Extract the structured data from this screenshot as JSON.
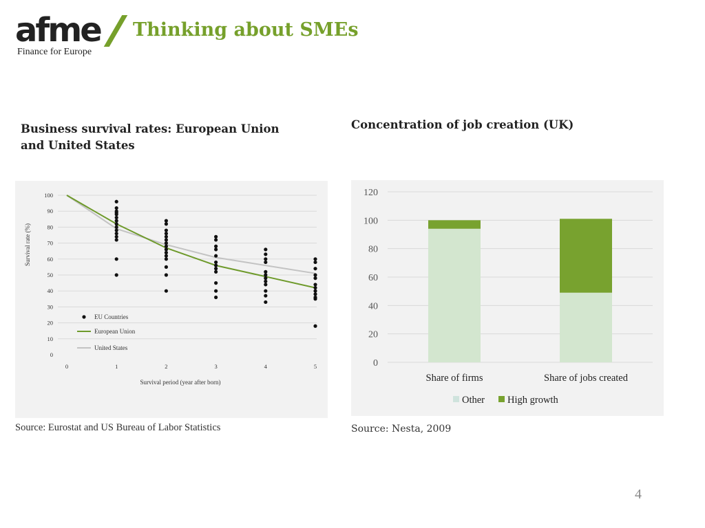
{
  "header": {
    "logo_word": "afme",
    "logo_tagline": "Finance for Europe",
    "title": "Thinking about SMEs"
  },
  "left": {
    "title": "Business survival rates: European Union and United States",
    "source": "Source: Eurostat and US Bureau of Labor Statistics"
  },
  "right": {
    "title": "Concentration of job creation (UK)",
    "source": "Source: Nesta, 2009"
  },
  "page_number": "4",
  "colors": {
    "accent": "#76a02b",
    "eu_line": "#6e9a2b",
    "us_line": "#c3c3c3",
    "other_bar": "#d3e6cf",
    "high_growth_bar": "#78a22f",
    "panel_bg": "#f2f2f2"
  },
  "chart_data": [
    {
      "type": "scatter",
      "xlabel": "Survival period (year after born)",
      "ylabel": "Survival rate (%)",
      "xlim": [
        0,
        5
      ],
      "ylim": [
        0,
        100
      ],
      "x_ticks": [
        "0",
        "1",
        "2",
        "3",
        "4",
        "5"
      ],
      "y_ticks": [
        "0",
        "10",
        "20",
        "30",
        "40",
        "50",
        "60",
        "70",
        "80",
        "90",
        "100"
      ],
      "grid": true,
      "legend_position": "bottom-left",
      "series": [
        {
          "name": "EU Countries",
          "kind": "points",
          "points": [
            [
              1,
              96
            ],
            [
              1,
              92
            ],
            [
              1,
              90
            ],
            [
              1,
              89
            ],
            [
              1,
              88
            ],
            [
              1,
              86
            ],
            [
              1,
              84
            ],
            [
              1,
              82
            ],
            [
              1,
              80
            ],
            [
              1,
              78
            ],
            [
              1,
              76
            ],
            [
              1,
              74
            ],
            [
              1,
              72
            ],
            [
              1,
              60
            ],
            [
              1,
              50
            ],
            [
              2,
              84
            ],
            [
              2,
              82
            ],
            [
              2,
              78
            ],
            [
              2,
              76
            ],
            [
              2,
              74
            ],
            [
              2,
              72
            ],
            [
              2,
              70
            ],
            [
              2,
              68
            ],
            [
              2,
              66
            ],
            [
              2,
              64
            ],
            [
              2,
              62
            ],
            [
              2,
              60
            ],
            [
              2,
              55
            ],
            [
              2,
              50
            ],
            [
              2,
              40
            ],
            [
              3,
              74
            ],
            [
              3,
              72
            ],
            [
              3,
              68
            ],
            [
              3,
              66
            ],
            [
              3,
              62
            ],
            [
              3,
              58
            ],
            [
              3,
              56
            ],
            [
              3,
              54
            ],
            [
              3,
              52
            ],
            [
              3,
              45
            ],
            [
              3,
              40
            ],
            [
              3,
              36
            ],
            [
              4,
              66
            ],
            [
              4,
              63
            ],
            [
              4,
              60
            ],
            [
              4,
              58
            ],
            [
              4,
              52
            ],
            [
              4,
              50
            ],
            [
              4,
              48
            ],
            [
              4,
              46
            ],
            [
              4,
              44
            ],
            [
              4,
              40
            ],
            [
              4,
              37
            ],
            [
              4,
              33
            ],
            [
              5,
              60
            ],
            [
              5,
              58
            ],
            [
              5,
              54
            ],
            [
              5,
              50
            ],
            [
              5,
              48
            ],
            [
              5,
              44
            ],
            [
              5,
              42
            ],
            [
              5,
              40
            ],
            [
              5,
              38
            ],
            [
              5,
              36
            ],
            [
              5,
              35
            ],
            [
              5,
              18
            ]
          ]
        },
        {
          "name": "European Union",
          "kind": "line",
          "x": [
            0,
            1,
            2,
            3,
            4,
            5
          ],
          "values": [
            100,
            82,
            67,
            56,
            49,
            42
          ]
        },
        {
          "name": "United States",
          "kind": "line",
          "x": [
            0,
            1,
            2,
            3,
            4,
            5
          ],
          "values": [
            100,
            79,
            69,
            61,
            56,
            51
          ]
        }
      ]
    },
    {
      "type": "bar",
      "stacked": true,
      "categories": [
        "Share of firms",
        "Share of jobs created"
      ],
      "ylim": [
        0,
        120
      ],
      "y_ticks": [
        "0",
        "20",
        "40",
        "60",
        "80",
        "100",
        "120"
      ],
      "grid": true,
      "legend_position": "bottom",
      "series": [
        {
          "name": "Other",
          "values": [
            94,
            49
          ]
        },
        {
          "name": "High growth",
          "values": [
            6,
            52
          ]
        }
      ]
    }
  ]
}
